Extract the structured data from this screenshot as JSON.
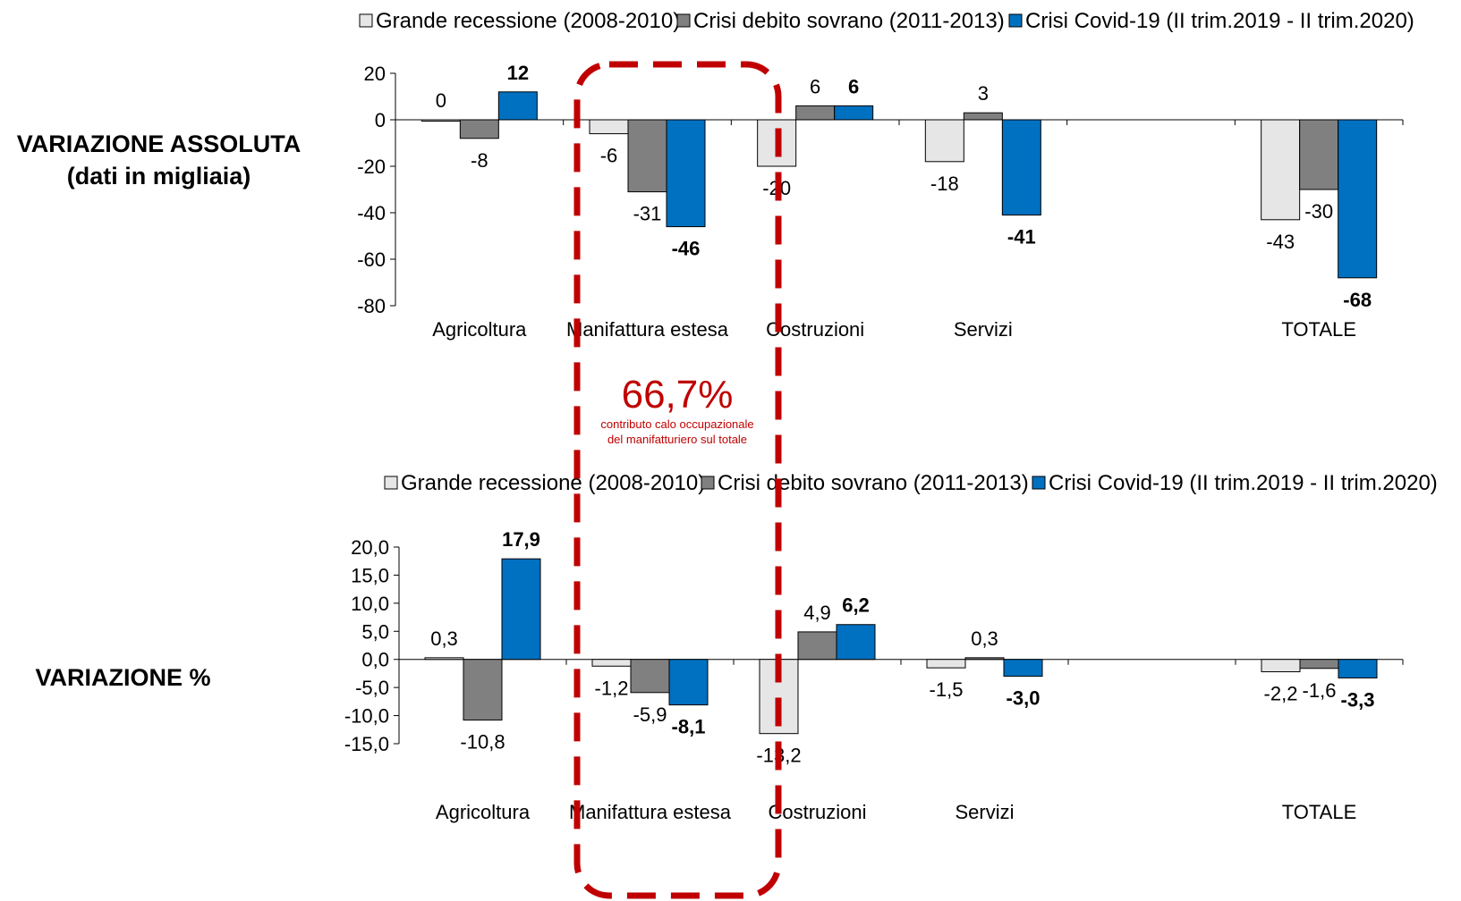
{
  "side_labels": {
    "absolute_line1": "VARIAZIONE ASSOLUTA",
    "absolute_line2": "(dati in migliaia)",
    "percent": "VARIAZIONE %"
  },
  "annotation": {
    "value": "66,7%",
    "line1": "contributo calo occupazionale",
    "line2": "del manifatturiero sul totale",
    "color": "#c00000"
  },
  "chart_data": [
    {
      "type": "bar",
      "categories": [
        "Agricoltura",
        "Manifattura estesa",
        "Costruzioni",
        "Servizi",
        "TOTALE"
      ],
      "series": [
        {
          "name": "Grande recessione (2008-2010)",
          "color": "#e6e6e6",
          "values": [
            0,
            -6,
            -20,
            -18,
            -43
          ],
          "labels": [
            "0",
            "-6",
            "-20",
            "-18",
            "-43"
          ]
        },
        {
          "name": "Crisi debito sovrano (2011-2013)",
          "color": "#808080",
          "values": [
            -8,
            -31,
            6,
            3,
            -30
          ],
          "labels": [
            "-8",
            "-31",
            "6",
            "3",
            "-30"
          ]
        },
        {
          "name": "Crisi Covid-19 (II trim.2019 - II trim.2020)",
          "color": "#0070c0",
          "values": [
            12,
            -46,
            6,
            -41,
            -68
          ],
          "labels": [
            "12",
            "-46",
            "6",
            "-41",
            "-68"
          ]
        }
      ],
      "ylim": [
        -80,
        20
      ],
      "yticks": [
        20,
        0,
        -20,
        -40,
        -60,
        -80
      ],
      "ytick_labels": [
        "20",
        "0",
        "-20",
        "-40",
        "-60",
        "-80"
      ],
      "legend_position": "top"
    },
    {
      "type": "bar",
      "categories": [
        "Agricoltura",
        "Manifattura estesa",
        "Costruzioni",
        "Servizi",
        "TOTALE"
      ],
      "series": [
        {
          "name": "Grande recessione (2008-2010)",
          "color": "#e6e6e6",
          "values": [
            0.3,
            -1.2,
            -13.2,
            -1.5,
            -2.2
          ],
          "labels": [
            "0,3",
            "-1,2",
            "-13,2",
            "-1,5",
            "-2,2"
          ]
        },
        {
          "name": "Crisi debito sovrano (2011-2013)",
          "color": "#808080",
          "values": [
            -10.8,
            -5.9,
            4.9,
            0.3,
            -1.6
          ],
          "labels": [
            "-10,8",
            "-5,9",
            "4,9",
            "0,3",
            "-1,6"
          ]
        },
        {
          "name": "Crisi Covid-19 (II trim.2019 - II trim.2020)",
          "color": "#0070c0",
          "values": [
            17.9,
            -8.1,
            6.2,
            -3.0,
            -3.3
          ],
          "labels": [
            "17,9",
            "-8,1",
            "6,2",
            "-3,0",
            "-3,3"
          ]
        }
      ],
      "ylim": [
        -15,
        20
      ],
      "yticks": [
        20,
        15,
        10,
        5,
        0,
        -5,
        -10,
        -15
      ],
      "ytick_labels": [
        "20,0",
        "15,0",
        "10,0",
        "5,0",
        "0,0",
        "-5,0",
        "-10,0",
        "-15,0"
      ],
      "legend_position": "top"
    }
  ]
}
